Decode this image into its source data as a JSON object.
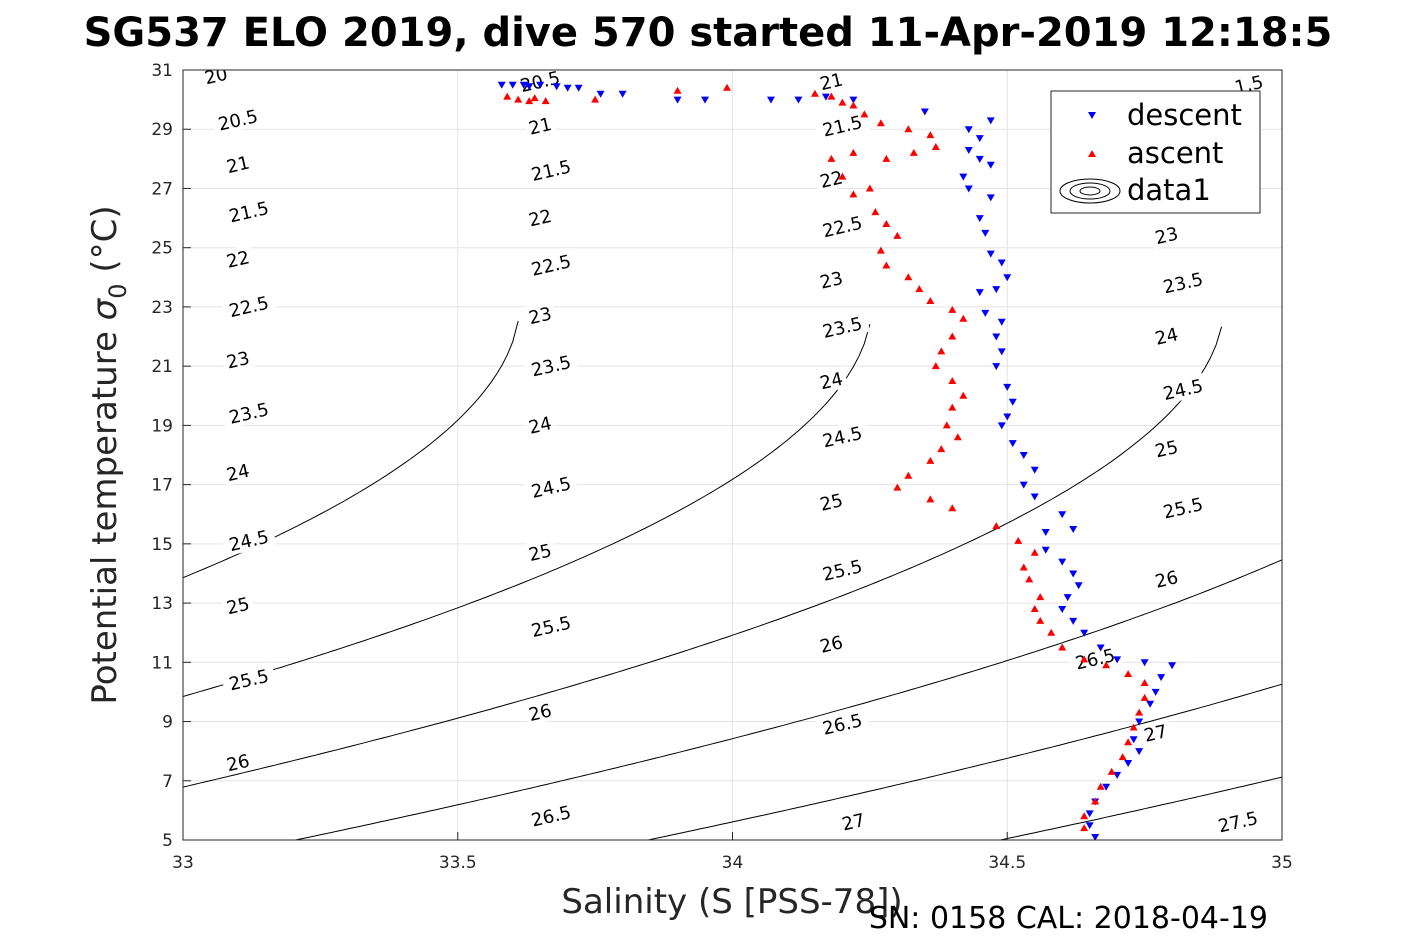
{
  "chart_data": {
    "type": "scatter",
    "title": "SG537 ELO 2019, dive 570 started 11-Apr-2019 12:18:5",
    "xlabel": "Salinity (S [PSS-78])",
    "ylabel_prefix": "Potential temperature ",
    "ylabel_sigma": "σ",
    "ylabel_sub": "0",
    "ylabel_suffix": " (°C)",
    "footer": "SN: 0158  CAL: 2018-04-19",
    "xlim": [
      33,
      35
    ],
    "ylim": [
      5,
      31
    ],
    "xticks": [
      "33",
      "33.5",
      "34",
      "34.5",
      "35"
    ],
    "yticks": [
      "5",
      "7",
      "9",
      "11",
      "13",
      "15",
      "17",
      "19",
      "21",
      "23",
      "25",
      "27",
      "29",
      "31"
    ],
    "grid": true,
    "legend_position": "top-right",
    "legend": [
      "descent",
      "ascent",
      "data1"
    ],
    "contour_levels": [
      20,
      20.5,
      21,
      21.5,
      22,
      22.5,
      23,
      23.5,
      24,
      24.5,
      25,
      25.5,
      26,
      26.5,
      27,
      27.5
    ],
    "contour_labels": [
      {
        "text": "20",
        "s": 33.06,
        "t": 30.8
      },
      {
        "text": "20.5",
        "s": 33.1,
        "t": 29.3
      },
      {
        "text": "21",
        "s": 33.1,
        "t": 27.8
      },
      {
        "text": "21.5",
        "s": 33.12,
        "t": 26.2
      },
      {
        "text": "22",
        "s": 33.1,
        "t": 24.6
      },
      {
        "text": "22.5",
        "s": 33.12,
        "t": 23.0
      },
      {
        "text": "23",
        "s": 33.1,
        "t": 21.2
      },
      {
        "text": "23.5",
        "s": 33.12,
        "t": 19.4
      },
      {
        "text": "24",
        "s": 33.1,
        "t": 17.4
      },
      {
        "text": "24.5",
        "s": 33.12,
        "t": 15.1
      },
      {
        "text": "25",
        "s": 33.1,
        "t": 12.9
      },
      {
        "text": "25.5",
        "s": 33.12,
        "t": 10.4
      },
      {
        "text": "26",
        "s": 33.1,
        "t": 7.6
      },
      {
        "text": "20.5",
        "s": 33.65,
        "t": 30.6
      },
      {
        "text": "21",
        "s": 33.65,
        "t": 29.1
      },
      {
        "text": "21.5",
        "s": 33.67,
        "t": 27.6
      },
      {
        "text": "22",
        "s": 33.65,
        "t": 26.0
      },
      {
        "text": "22.5",
        "s": 33.67,
        "t": 24.4
      },
      {
        "text": "23",
        "s": 33.65,
        "t": 22.7
      },
      {
        "text": "23.5",
        "s": 33.67,
        "t": 21.0
      },
      {
        "text": "24",
        "s": 33.65,
        "t": 19.0
      },
      {
        "text": "24.5",
        "s": 33.67,
        "t": 16.9
      },
      {
        "text": "25",
        "s": 33.65,
        "t": 14.7
      },
      {
        "text": "25.5",
        "s": 33.67,
        "t": 12.2
      },
      {
        "text": "26",
        "s": 33.65,
        "t": 9.3
      },
      {
        "text": "26.5",
        "s": 33.67,
        "t": 5.8
      },
      {
        "text": "21",
        "s": 34.18,
        "t": 30.6
      },
      {
        "text": "21.5",
        "s": 34.2,
        "t": 29.1
      },
      {
        "text": "22",
        "s": 34.18,
        "t": 27.3
      },
      {
        "text": "22.5",
        "s": 34.2,
        "t": 25.7
      },
      {
        "text": "23",
        "s": 34.18,
        "t": 23.9
      },
      {
        "text": "23.5",
        "s": 34.2,
        "t": 22.3
      },
      {
        "text": "24",
        "s": 34.18,
        "t": 20.5
      },
      {
        "text": "24.5",
        "s": 34.2,
        "t": 18.6
      },
      {
        "text": "25",
        "s": 34.18,
        "t": 16.4
      },
      {
        "text": "25.5",
        "s": 34.2,
        "t": 14.1
      },
      {
        "text": "26",
        "s": 34.18,
        "t": 11.6
      },
      {
        "text": "26.5",
        "s": 34.2,
        "t": 8.9
      },
      {
        "text": "27",
        "s": 34.22,
        "t": 5.6
      },
      {
        "text": "1.5",
        "s": 34.94,
        "t": 30.5
      },
      {
        "text": "23",
        "s": 34.79,
        "t": 25.4
      },
      {
        "text": "23.5",
        "s": 34.82,
        "t": 23.8
      },
      {
        "text": "24",
        "s": 34.79,
        "t": 22.0
      },
      {
        "text": "24.5",
        "s": 34.82,
        "t": 20.2
      },
      {
        "text": "25",
        "s": 34.79,
        "t": 18.2
      },
      {
        "text": "25.5",
        "s": 34.82,
        "t": 16.2
      },
      {
        "text": "26",
        "s": 34.79,
        "t": 13.8
      },
      {
        "text": "26.5",
        "s": 34.66,
        "t": 11.1
      },
      {
        "text": "27",
        "s": 34.77,
        "t": 8.6
      },
      {
        "text": "27.5",
        "s": 34.92,
        "t": 5.6
      }
    ],
    "series": [
      {
        "name": "descent",
        "color": "#0000ff",
        "marker": "triangle-down",
        "points": [
          [
            33.58,
            30.5
          ],
          [
            33.6,
            30.5
          ],
          [
            33.62,
            30.5
          ],
          [
            33.63,
            30.45
          ],
          [
            33.65,
            30.5
          ],
          [
            33.68,
            30.45
          ],
          [
            33.7,
            30.4
          ],
          [
            33.72,
            30.4
          ],
          [
            33.76,
            30.2
          ],
          [
            33.8,
            30.2
          ],
          [
            33.9,
            30.0
          ],
          [
            33.95,
            30.0
          ],
          [
            34.07,
            30.0
          ],
          [
            34.12,
            30.0
          ],
          [
            34.17,
            30.1
          ],
          [
            34.22,
            30.0
          ],
          [
            34.35,
            29.6
          ],
          [
            34.43,
            29.0
          ],
          [
            34.45,
            28.7
          ],
          [
            34.47,
            29.3
          ],
          [
            34.43,
            28.3
          ],
          [
            34.45,
            28.0
          ],
          [
            34.47,
            27.8
          ],
          [
            34.42,
            27.4
          ],
          [
            34.43,
            27.0
          ],
          [
            34.47,
            26.7
          ],
          [
            34.45,
            26.0
          ],
          [
            34.46,
            25.5
          ],
          [
            34.47,
            24.8
          ],
          [
            34.49,
            24.5
          ],
          [
            34.5,
            24.0
          ],
          [
            34.48,
            23.6
          ],
          [
            34.45,
            23.5
          ],
          [
            34.46,
            22.8
          ],
          [
            34.49,
            22.5
          ],
          [
            34.48,
            22.0
          ],
          [
            34.49,
            21.5
          ],
          [
            34.48,
            21.0
          ],
          [
            34.5,
            20.3
          ],
          [
            34.51,
            19.8
          ],
          [
            34.5,
            19.3
          ],
          [
            34.49,
            19.0
          ],
          [
            34.51,
            18.4
          ],
          [
            34.53,
            18.0
          ],
          [
            34.55,
            17.5
          ],
          [
            34.53,
            17.0
          ],
          [
            34.55,
            16.6
          ],
          [
            34.6,
            16.0
          ],
          [
            34.62,
            15.5
          ],
          [
            34.57,
            15.4
          ],
          [
            34.57,
            14.8
          ],
          [
            34.6,
            14.4
          ],
          [
            34.62,
            14.0
          ],
          [
            34.63,
            13.6
          ],
          [
            34.61,
            13.2
          ],
          [
            34.6,
            12.8
          ],
          [
            34.62,
            12.4
          ],
          [
            34.64,
            12.0
          ],
          [
            34.67,
            11.5
          ],
          [
            34.7,
            11.1
          ],
          [
            34.75,
            11.0
          ],
          [
            34.8,
            10.9
          ],
          [
            34.78,
            10.5
          ],
          [
            34.77,
            10.0
          ],
          [
            34.76,
            9.6
          ],
          [
            34.74,
            9.0
          ],
          [
            34.73,
            8.4
          ],
          [
            34.74,
            8.0
          ],
          [
            34.72,
            7.6
          ],
          [
            34.7,
            7.2
          ],
          [
            34.68,
            6.8
          ],
          [
            34.66,
            6.3
          ],
          [
            34.65,
            5.9
          ],
          [
            34.65,
            5.5
          ],
          [
            34.66,
            5.1
          ]
        ]
      },
      {
        "name": "ascent",
        "color": "#ff0000",
        "marker": "triangle-up",
        "points": [
          [
            33.59,
            30.1
          ],
          [
            33.61,
            30.0
          ],
          [
            33.63,
            29.95
          ],
          [
            33.64,
            30.05
          ],
          [
            33.66,
            29.95
          ],
          [
            33.75,
            30.0
          ],
          [
            33.9,
            30.3
          ],
          [
            33.99,
            30.4
          ],
          [
            34.15,
            30.2
          ],
          [
            34.18,
            30.1
          ],
          [
            34.2,
            29.9
          ],
          [
            34.22,
            29.8
          ],
          [
            34.24,
            29.5
          ],
          [
            34.27,
            29.2
          ],
          [
            34.32,
            29.0
          ],
          [
            34.36,
            28.8
          ],
          [
            34.37,
            28.4
          ],
          [
            34.33,
            28.2
          ],
          [
            34.28,
            28.0
          ],
          [
            34.22,
            28.2
          ],
          [
            34.18,
            28.0
          ],
          [
            34.2,
            27.4
          ],
          [
            34.25,
            27.0
          ],
          [
            34.22,
            26.8
          ],
          [
            34.26,
            26.2
          ],
          [
            34.28,
            25.8
          ],
          [
            34.3,
            25.4
          ],
          [
            34.27,
            24.9
          ],
          [
            34.28,
            24.4
          ],
          [
            34.32,
            24.0
          ],
          [
            34.34,
            23.6
          ],
          [
            34.36,
            23.2
          ],
          [
            34.4,
            22.9
          ],
          [
            34.42,
            22.6
          ],
          [
            34.4,
            22.0
          ],
          [
            34.38,
            21.5
          ],
          [
            34.37,
            21.0
          ],
          [
            34.4,
            20.5
          ],
          [
            34.42,
            20.0
          ],
          [
            34.4,
            19.6
          ],
          [
            34.39,
            19.0
          ],
          [
            34.41,
            18.6
          ],
          [
            34.38,
            18.2
          ],
          [
            34.36,
            17.8
          ],
          [
            34.32,
            17.3
          ],
          [
            34.3,
            16.9
          ],
          [
            34.36,
            16.5
          ],
          [
            34.4,
            16.2
          ],
          [
            34.48,
            15.6
          ],
          [
            34.52,
            15.1
          ],
          [
            34.55,
            14.7
          ],
          [
            34.53,
            14.2
          ],
          [
            34.54,
            13.8
          ],
          [
            34.56,
            13.2
          ],
          [
            34.55,
            12.8
          ],
          [
            34.56,
            12.4
          ],
          [
            34.58,
            12.0
          ],
          [
            34.6,
            11.5
          ],
          [
            34.64,
            11.1
          ],
          [
            34.68,
            10.9
          ],
          [
            34.72,
            10.6
          ],
          [
            34.75,
            10.3
          ],
          [
            34.75,
            9.8
          ],
          [
            34.74,
            9.3
          ],
          [
            34.73,
            8.8
          ],
          [
            34.72,
            8.3
          ],
          [
            34.71,
            7.8
          ],
          [
            34.69,
            7.3
          ],
          [
            34.67,
            6.8
          ],
          [
            34.66,
            6.3
          ],
          [
            34.64,
            5.8
          ],
          [
            34.64,
            5.4
          ]
        ]
      }
    ]
  }
}
